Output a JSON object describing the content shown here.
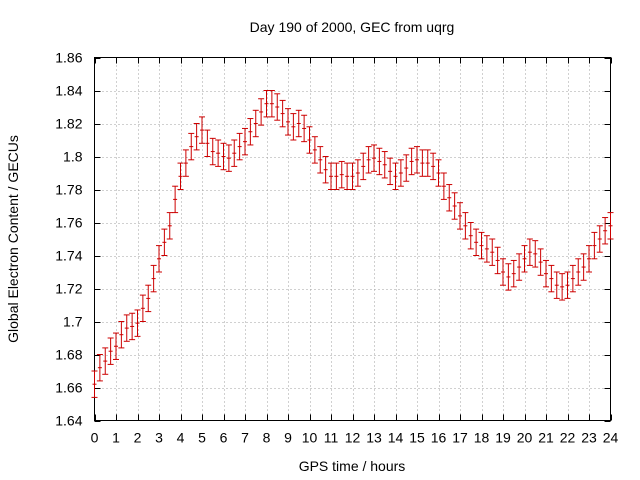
{
  "chart_data": {
    "type": "scatter",
    "title": "Day 190 of 2000, GEC from uqrg",
    "xlabel": "GPS time / hours",
    "ylabel": "Global Electron Content / GECUs",
    "xlim": [
      0,
      24
    ],
    "ylim": [
      1.64,
      1.86
    ],
    "xticks": [
      "0",
      "1",
      "2",
      "3",
      "4",
      "5",
      "6",
      "7",
      "8",
      "9",
      "10",
      "11",
      "12",
      "13",
      "14",
      "15",
      "16",
      "17",
      "18",
      "19",
      "20",
      "21",
      "22",
      "23",
      "24"
    ],
    "yticks": [
      "1.64",
      "1.66",
      "1.68",
      "1.7",
      "1.72",
      "1.74",
      "1.76",
      "1.78",
      "1.8",
      "1.82",
      "1.84",
      "1.86"
    ],
    "grid": true,
    "marker_color": "#cc0000",
    "error_bar_halfwidth": 0.008,
    "series": [
      {
        "name": "GEC",
        "x": [
          0,
          0.25,
          0.5,
          0.75,
          1,
          1.25,
          1.5,
          1.75,
          2,
          2.25,
          2.5,
          2.75,
          3,
          3.25,
          3.5,
          3.75,
          4,
          4.25,
          4.5,
          4.75,
          5,
          5.25,
          5.5,
          5.75,
          6,
          6.25,
          6.5,
          6.75,
          7,
          7.25,
          7.5,
          7.75,
          8,
          8.25,
          8.5,
          8.75,
          9,
          9.25,
          9.5,
          9.75,
          10,
          10.25,
          10.5,
          10.75,
          11,
          11.25,
          11.5,
          11.75,
          12,
          12.25,
          12.5,
          12.75,
          13,
          13.25,
          13.5,
          13.75,
          14,
          14.25,
          14.5,
          14.75,
          15,
          15.25,
          15.5,
          15.75,
          16,
          16.25,
          16.5,
          16.75,
          17,
          17.25,
          17.5,
          17.75,
          18,
          18.25,
          18.5,
          18.75,
          19,
          19.25,
          19.5,
          19.75,
          20,
          20.25,
          20.5,
          20.75,
          21,
          21.25,
          21.5,
          21.75,
          22,
          22.25,
          22.5,
          22.75,
          23,
          23.25,
          23.5,
          23.75,
          24
        ],
        "y": [
          1.662,
          1.672,
          1.676,
          1.682,
          1.685,
          1.692,
          1.696,
          1.697,
          1.699,
          1.708,
          1.714,
          1.726,
          1.738,
          1.748,
          1.758,
          1.774,
          1.788,
          1.796,
          1.806,
          1.812,
          1.816,
          1.808,
          1.803,
          1.802,
          1.8,
          1.799,
          1.802,
          1.806,
          1.809,
          1.815,
          1.82,
          1.827,
          1.832,
          1.832,
          1.83,
          1.826,
          1.821,
          1.818,
          1.82,
          1.817,
          1.81,
          1.804,
          1.798,
          1.792,
          1.788,
          1.788,
          1.789,
          1.788,
          1.788,
          1.79,
          1.794,
          1.798,
          1.799,
          1.797,
          1.795,
          1.791,
          1.788,
          1.79,
          1.793,
          1.797,
          1.798,
          1.796,
          1.796,
          1.794,
          1.79,
          1.782,
          1.775,
          1.77,
          1.764,
          1.758,
          1.752,
          1.748,
          1.746,
          1.744,
          1.742,
          1.737,
          1.73,
          1.727,
          1.729,
          1.733,
          1.738,
          1.742,
          1.741,
          1.736,
          1.729,
          1.726,
          1.722,
          1.721,
          1.722,
          1.726,
          1.73,
          1.733,
          1.738,
          1.746,
          1.75,
          1.755,
          1.758
        ]
      }
    ]
  }
}
